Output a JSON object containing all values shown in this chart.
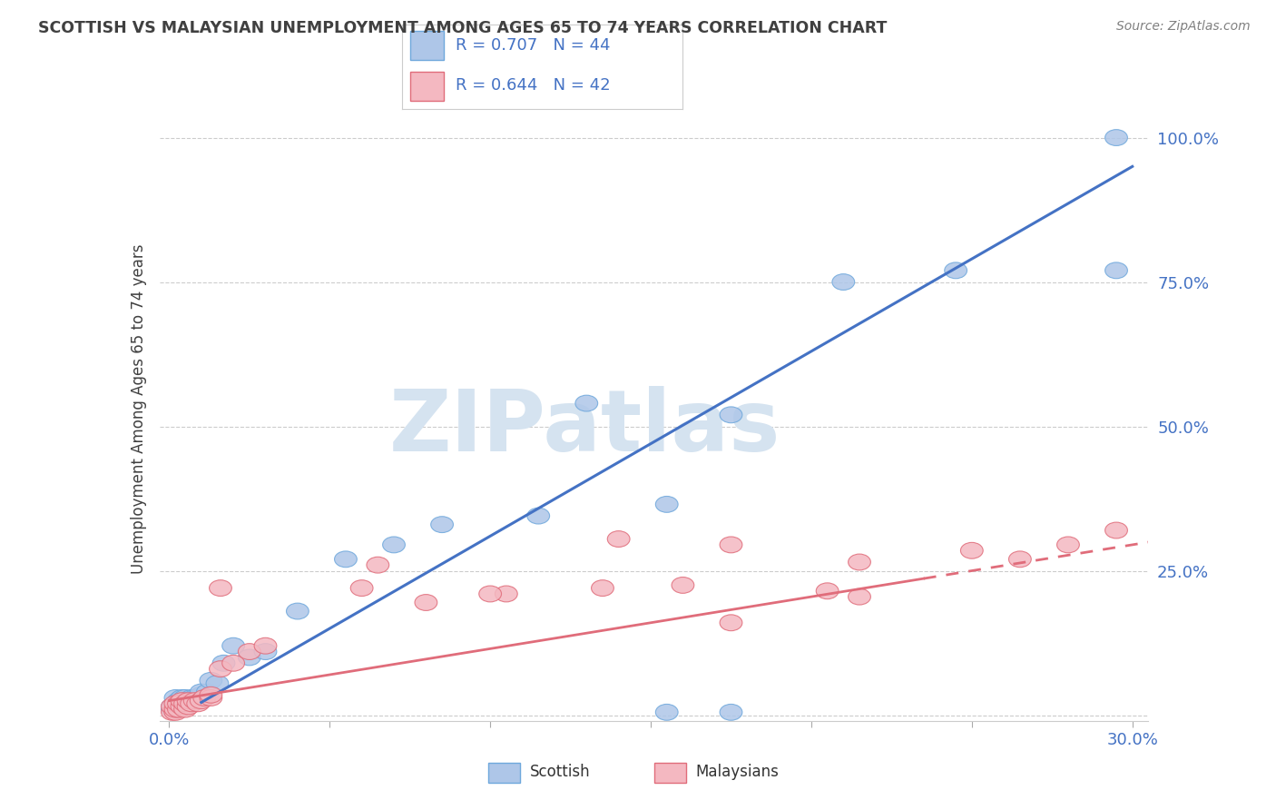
{
  "title": "SCOTTISH VS MALAYSIAN UNEMPLOYMENT AMONG AGES 65 TO 74 YEARS CORRELATION CHART",
  "source": "Source: ZipAtlas.com",
  "ylabel": "Unemployment Among Ages 65 to 74 years",
  "xlim": [
    -0.003,
    0.305
  ],
  "ylim": [
    -0.01,
    1.07
  ],
  "xtick_positions": [
    0.0,
    0.05,
    0.1,
    0.15,
    0.2,
    0.25,
    0.3
  ],
  "xtick_labels": [
    "0.0%",
    "",
    "",
    "",
    "",
    "",
    "30.0%"
  ],
  "ytick_positions": [
    0.0,
    0.25,
    0.5,
    0.75,
    1.0
  ],
  "ytick_labels": [
    "",
    "25.0%",
    "50.0%",
    "75.0%",
    "100.0%"
  ],
  "scottish_color_face": "#aec6e8",
  "scottish_color_edge": "#6fa8dc",
  "malaysian_color_face": "#f4b8c1",
  "malaysian_color_edge": "#e06c7a",
  "scottish_line_color": "#4472c4",
  "malaysian_line_color": "#e06c7a",
  "tick_label_color": "#4472c4",
  "title_color": "#404040",
  "source_color": "#808080",
  "ylabel_color": "#404040",
  "grid_color": "#cccccc",
  "R_scottish": 0.707,
  "N_scottish": 44,
  "R_malaysian": 0.644,
  "N_malaysian": 42,
  "background_color": "#ffffff",
  "watermark_text": "ZIPatlas",
  "watermark_color": "#d5e3f0",
  "scottish_slope": 3.2,
  "scottish_intercept": -0.01,
  "scottish_line_xstart": 0.01,
  "scottish_line_xend": 0.3,
  "malaysian_slope": 0.9,
  "malaysian_intercept": 0.025,
  "malaysian_solid_xstart": 0.0,
  "malaysian_solid_xend": 0.235,
  "malaysian_dashed_xstart": 0.235,
  "malaysian_dashed_xend": 0.305,
  "scottish_points_x": [
    0.001,
    0.001,
    0.002,
    0.002,
    0.002,
    0.003,
    0.003,
    0.003,
    0.004,
    0.004,
    0.004,
    0.005,
    0.005,
    0.005,
    0.006,
    0.006,
    0.007,
    0.007,
    0.008,
    0.008,
    0.009,
    0.01,
    0.01,
    0.012,
    0.013,
    0.015,
    0.017,
    0.02,
    0.025,
    0.03,
    0.04,
    0.055,
    0.07,
    0.085,
    0.115,
    0.13,
    0.155,
    0.175,
    0.21,
    0.245,
    0.155,
    0.175,
    0.295,
    0.295
  ],
  "scottish_points_y": [
    0.01,
    0.015,
    0.01,
    0.02,
    0.03,
    0.01,
    0.02,
    0.025,
    0.015,
    0.02,
    0.03,
    0.015,
    0.025,
    0.03,
    0.02,
    0.025,
    0.02,
    0.03,
    0.025,
    0.03,
    0.03,
    0.035,
    0.04,
    0.04,
    0.06,
    0.055,
    0.09,
    0.12,
    0.1,
    0.11,
    0.18,
    0.27,
    0.295,
    0.33,
    0.345,
    0.54,
    0.365,
    0.52,
    0.75,
    0.77,
    0.005,
    0.005,
    0.77,
    1.0
  ],
  "malaysian_points_x": [
    0.001,
    0.001,
    0.002,
    0.002,
    0.002,
    0.003,
    0.003,
    0.004,
    0.004,
    0.005,
    0.005,
    0.006,
    0.006,
    0.007,
    0.008,
    0.009,
    0.01,
    0.011,
    0.013,
    0.013,
    0.016,
    0.016,
    0.02,
    0.025,
    0.03,
    0.06,
    0.08,
    0.105,
    0.135,
    0.16,
    0.175,
    0.205,
    0.215,
    0.25,
    0.265,
    0.28,
    0.295,
    0.1,
    0.175,
    0.215,
    0.065,
    0.14
  ],
  "malaysian_points_y": [
    0.005,
    0.015,
    0.005,
    0.01,
    0.02,
    0.01,
    0.02,
    0.015,
    0.025,
    0.01,
    0.02,
    0.015,
    0.025,
    0.02,
    0.025,
    0.02,
    0.025,
    0.03,
    0.03,
    0.035,
    0.08,
    0.22,
    0.09,
    0.11,
    0.12,
    0.22,
    0.195,
    0.21,
    0.22,
    0.225,
    0.295,
    0.215,
    0.265,
    0.285,
    0.27,
    0.295,
    0.32,
    0.21,
    0.16,
    0.205,
    0.26,
    0.305
  ]
}
